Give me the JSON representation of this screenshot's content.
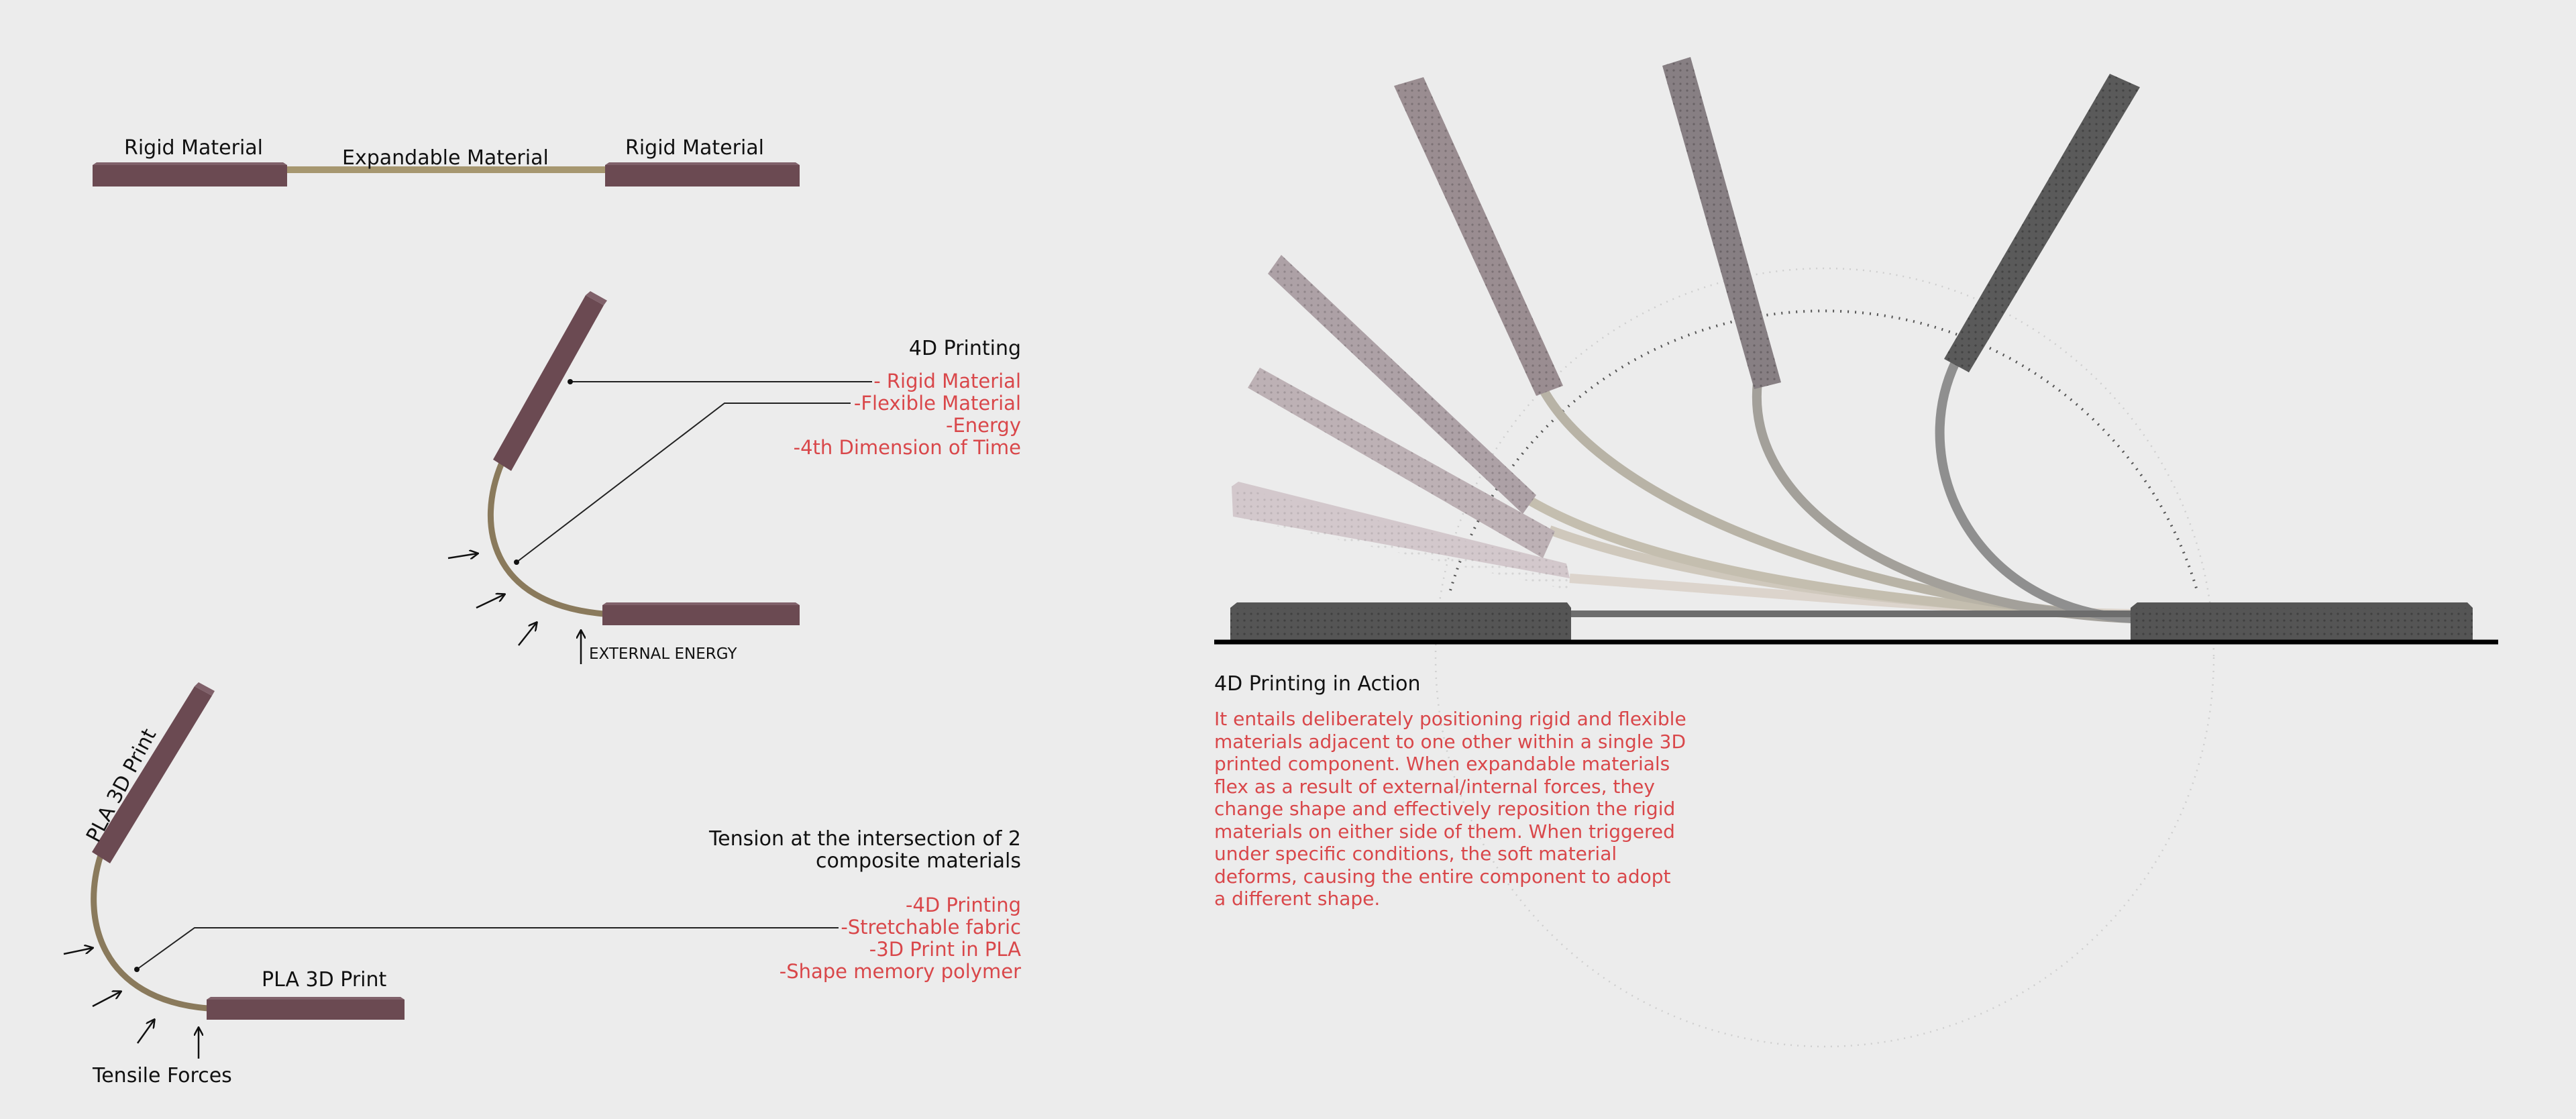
{
  "diagram_top": {
    "rigid_left": "Rigid Material",
    "expandable": "Expandable Material",
    "rigid_right": "Rigid Material"
  },
  "diagram_middle": {
    "title": "4D Printing",
    "items": [
      "- Rigid Material",
      "-Flexible Material",
      "-Energy",
      "-4th Dimension of Time"
    ],
    "energy_label": "EXTERNAL ENERGY"
  },
  "diagram_bottom": {
    "title_line1": "Tension at the intersection of 2",
    "title_line2": "composite materials",
    "items": [
      "-4D Printing",
      "-Stretchable fabric",
      "-3D Print in PLA",
      "-Shape memory polymer"
    ],
    "pla_vertical": "PLA 3D Print",
    "pla_horizontal": "PLA 3D Print",
    "forces_label": "Tensile Forces"
  },
  "action": {
    "title": "4D Printing in Action",
    "lines": [
      "It entails deliberately positioning rigid and flexible",
      "materials adjacent to one other within a single 3D",
      "printed component. When expandable materials",
      "flex as a result of external/internal forces, they",
      "change shape and effectively reposition the rigid",
      "materials on either side of them. When triggered",
      "under specific conditions, the soft material",
      "deforms, causing the entire component to adopt",
      "a different shape."
    ]
  },
  "colors": {
    "rigid": "#6b4a52",
    "flex": "#8a7a5c",
    "accent_text": "#d9474a",
    "dark_block": "#555555"
  }
}
